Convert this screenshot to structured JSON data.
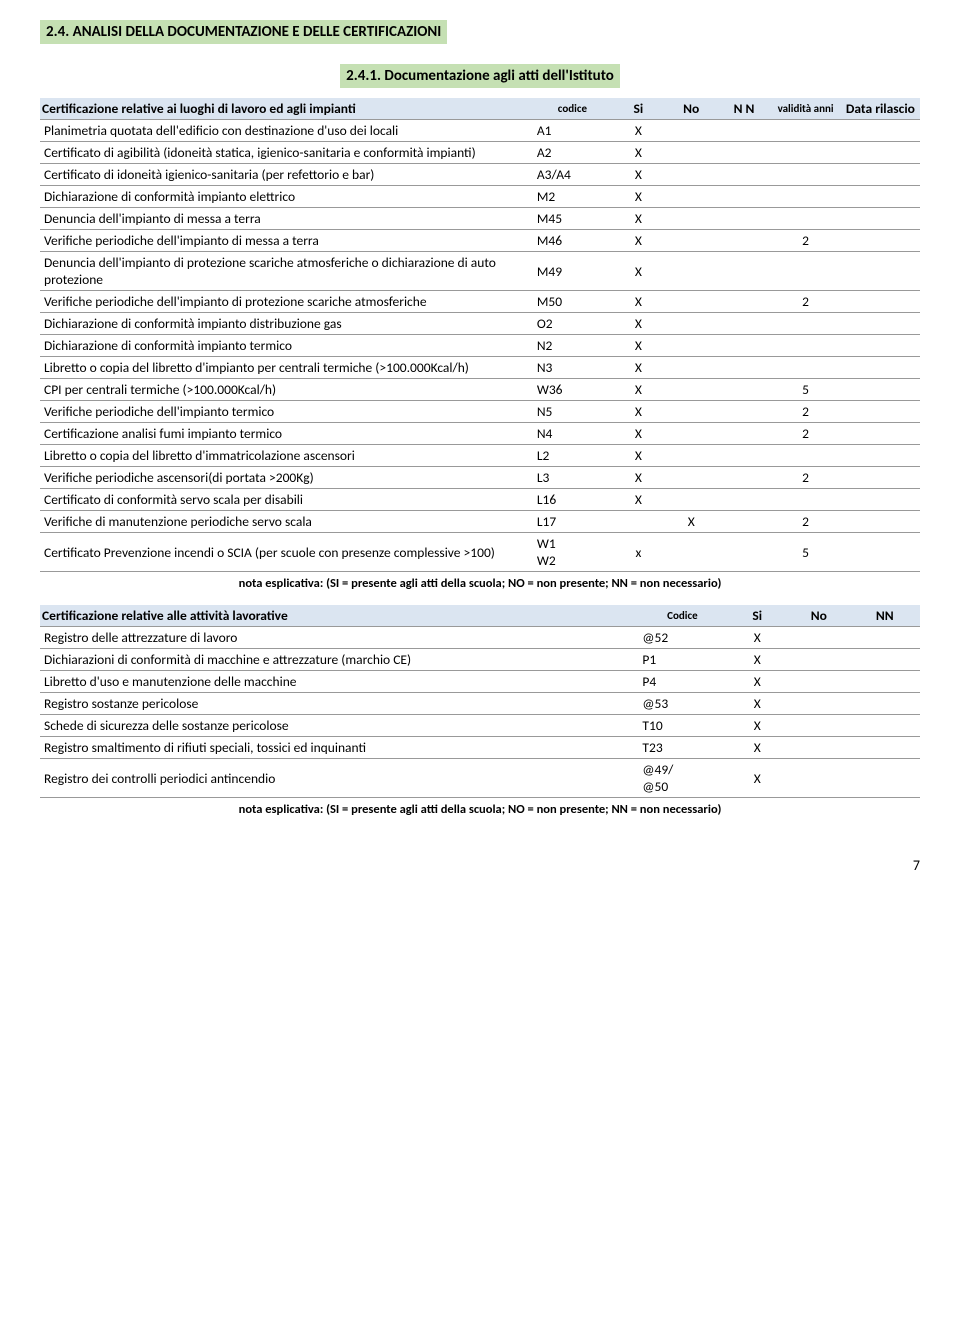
{
  "section_title": "2.4.    ANALISI DELLA DOCUMENTAZIONE E DELLE CERTIFICAZIONI",
  "subsection_title": "2.4.1.    Documentazione agli atti dell'Istituto",
  "table1": {
    "header": {
      "desc": "Certificazione relative ai luoghi di lavoro ed agli impianti",
      "code": "codice",
      "si": "Si",
      "no": "No",
      "nn": "N N",
      "validita": "validità anni",
      "data": "Data rilascio"
    },
    "rows": [
      {
        "desc": "Planimetria quotata dell'edificio con destinazione d'uso dei locali",
        "code": "A1",
        "si": "X",
        "no": "",
        "nn": "",
        "val": "",
        "data": ""
      },
      {
        "desc": "Certificato di agibilità (idoneità statica, igienico-sanitaria e conformità impianti)",
        "code": "A2",
        "si": "X",
        "no": "",
        "nn": "",
        "val": "",
        "data": ""
      },
      {
        "desc": "Certificato di idoneità igienico-sanitaria (per refettorio e bar)",
        "code": "A3/A4",
        "si": "X",
        "no": "",
        "nn": "",
        "val": "",
        "data": ""
      },
      {
        "desc": "Dichiarazione di conformità impianto elettrico",
        "code": "M2",
        "si": "X",
        "no": "",
        "nn": "",
        "val": "",
        "data": ""
      },
      {
        "desc": "Denuncia dell'impianto di messa a terra",
        "code": "M45",
        "si": "X",
        "no": "",
        "nn": "",
        "val": "",
        "data": ""
      },
      {
        "desc": "Verifiche periodiche dell'impianto di messa a terra",
        "code": "M46",
        "si": "X",
        "no": "",
        "nn": "",
        "val": "2",
        "data": ""
      },
      {
        "desc": "Denuncia dell'impianto di protezione scariche atmosferiche o dichiarazione di auto protezione",
        "code": "M49",
        "si": "X",
        "no": "",
        "nn": "",
        "val": "",
        "data": ""
      },
      {
        "desc": "Verifiche periodiche dell'impianto di protezione scariche atmosferiche",
        "code": "M50",
        "si": "X",
        "no": "",
        "nn": "",
        "val": "2",
        "data": ""
      },
      {
        "desc": "Dichiarazione di conformità impianto distribuzione gas",
        "code": "O2",
        "si": "X",
        "no": "",
        "nn": "",
        "val": "",
        "data": ""
      },
      {
        "desc": "Dichiarazione di conformità impianto termico",
        "code": "N2",
        "si": "X",
        "no": "",
        "nn": "",
        "val": "",
        "data": ""
      },
      {
        "desc": "Libretto o copia del libretto d'impianto per centrali termiche (>100.000Kcal/h)",
        "code": "N3",
        "si": "X",
        "no": "",
        "nn": "",
        "val": "",
        "data": ""
      },
      {
        "desc": "CPI per centrali termiche (>100.000Kcal/h)",
        "code": "W36",
        "si": "X",
        "no": "",
        "nn": "",
        "val": "5",
        "data": ""
      },
      {
        "desc": "Verifiche periodiche dell'impianto termico",
        "code": "N5",
        "si": "X",
        "no": "",
        "nn": "",
        "val": "2",
        "data": ""
      },
      {
        "desc": "Certificazione analisi fumi impianto termico",
        "code": "N4",
        "si": "X",
        "no": "",
        "nn": "",
        "val": "2",
        "data": ""
      },
      {
        "desc": "Libretto o copia del libretto d'immatricolazione ascensori",
        "code": "L2",
        "si": "X",
        "no": "",
        "nn": "",
        "val": "",
        "data": ""
      },
      {
        "desc": "Verifiche periodiche ascensori(di portata >200Kg)",
        "code": "L3",
        "si": "X",
        "no": "",
        "nn": "",
        "val": "2",
        "data": ""
      },
      {
        "desc": "Certificato di conformità servo scala per disabili",
        "code": "L16",
        "si": "X",
        "no": "",
        "nn": "",
        "val": "",
        "data": ""
      },
      {
        "desc": "Verifiche  di manutenzione periodiche servo scala",
        "code": "L17",
        "si": "",
        "no": "X",
        "nn": "",
        "val": "2",
        "data": ""
      },
      {
        "desc": "Certificato Prevenzione incendi o SCIA (per scuole con presenze complessive >100)",
        "code": "W1 W2",
        "si": "x",
        "no": "",
        "nn": "",
        "val": "5",
        "data": ""
      }
    ]
  },
  "note1": "nota esplicativa: (SI = presente agli atti della scuola; NO = non presente; NN = non necessario)",
  "table2": {
    "header": {
      "desc": "Certificazione relative alle attività lavorative",
      "code": "Codice",
      "si": "Si",
      "no": "No",
      "nn": "NN"
    },
    "rows": [
      {
        "desc": "Registro delle attrezzature di lavoro",
        "code": "@52",
        "si": "X",
        "no": "",
        "nn": ""
      },
      {
        "desc": "Dichiarazioni di conformità di macchine e attrezzature (marchio CE)",
        "code": "P1",
        "si": "X",
        "no": "",
        "nn": ""
      },
      {
        "desc": "Libretto d'uso e manutenzione delle macchine",
        "code": "P4",
        "si": "X",
        "no": "",
        "nn": ""
      },
      {
        "desc": "Registro sostanze pericolose",
        "code": "@53",
        "si": "X",
        "no": "",
        "nn": ""
      },
      {
        "desc": "Schede di sicurezza delle sostanze pericolose",
        "code": "T10",
        "si": "X",
        "no": "",
        "nn": ""
      },
      {
        "desc": "Registro smaltimento di rifiuti speciali, tossici ed inquinanti",
        "code": "T23",
        "si": "X",
        "no": "",
        "nn": ""
      },
      {
        "desc": "Registro dei controlli periodici antincendio",
        "code": "@49/ @50",
        "si": "X",
        "no": "",
        "nn": ""
      }
    ]
  },
  "note2": "nota esplicativa: (SI = presente agli atti della scuola; NO = non presente; NN = non necessario)",
  "page_number": "7",
  "colors": {
    "green_band": "#c5e0b3",
    "blue_band": "#dbe5f1",
    "border": "#999999"
  }
}
